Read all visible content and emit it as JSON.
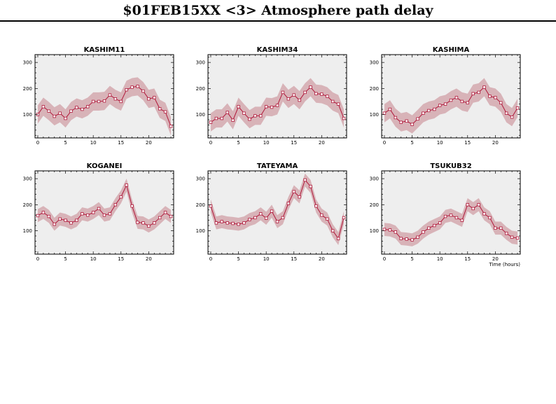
{
  "page_title": "$01FEB15XX <3>  Atmosphere path delay",
  "colors": {
    "band": "#d8b3b8",
    "line": "#b0183a",
    "background": "#eeeeee"
  },
  "chart_data": [
    {
      "type": "line",
      "title": "KASHIM11",
      "xlim": [
        -0.5,
        24.5
      ],
      "ylim": [
        10,
        330
      ],
      "x_ticks": [
        0,
        5,
        10,
        15,
        20
      ],
      "y_ticks": [
        100,
        200,
        300
      ],
      "band_halfwidth": 35,
      "xlabel": "",
      "x": [
        0,
        1,
        2,
        3,
        4,
        5,
        6,
        7,
        8,
        9,
        10,
        11,
        12,
        13,
        14,
        15,
        16,
        17,
        18,
        19,
        20,
        21,
        22,
        23,
        24
      ],
      "y": [
        100,
        130,
        113,
        93,
        105,
        85,
        113,
        127,
        120,
        130,
        150,
        150,
        152,
        175,
        160,
        150,
        195,
        205,
        208,
        190,
        160,
        165,
        122,
        110,
        55
      ]
    },
    {
      "type": "line",
      "title": "KASHIM34",
      "xlim": [
        -0.5,
        24.5
      ],
      "ylim": [
        10,
        330
      ],
      "x_ticks": [
        0,
        5,
        10,
        15,
        20
      ],
      "y_ticks": [
        100,
        200,
        300
      ],
      "band_halfwidth": 35,
      "xlabel": "",
      "x": [
        0,
        1,
        2,
        3,
        4,
        5,
        6,
        7,
        8,
        9,
        10,
        11,
        12,
        13,
        14,
        15,
        16,
        17,
        18,
        19,
        20,
        21,
        22,
        23,
        24
      ],
      "y": [
        70,
        85,
        85,
        108,
        78,
        130,
        105,
        82,
        95,
        95,
        130,
        128,
        135,
        185,
        160,
        175,
        155,
        185,
        205,
        180,
        178,
        170,
        150,
        140,
        85
      ]
    },
    {
      "type": "line",
      "title": "KASHIMA",
      "xlim": [
        -0.5,
        24.5
      ],
      "ylim": [
        10,
        330
      ],
      "x_ticks": [
        0,
        5,
        10,
        15,
        20
      ],
      "y_ticks": [
        100,
        200,
        300
      ],
      "band_halfwidth": 35,
      "xlabel": "",
      "x": [
        0,
        1,
        2,
        3,
        4,
        5,
        6,
        7,
        8,
        9,
        10,
        11,
        12,
        13,
        14,
        15,
        16,
        17,
        18,
        19,
        20,
        21,
        22,
        23,
        24
      ],
      "y": [
        105,
        120,
        88,
        70,
        75,
        62,
        83,
        105,
        115,
        120,
        135,
        140,
        155,
        165,
        150,
        145,
        180,
        185,
        205,
        170,
        165,
        145,
        105,
        90,
        125
      ]
    },
    {
      "type": "line",
      "title": "KOGANEI",
      "xlim": [
        -0.5,
        24.5
      ],
      "ylim": [
        10,
        330
      ],
      "x_ticks": [
        0,
        5,
        10,
        15,
        20
      ],
      "y_ticks": [
        100,
        200,
        300
      ],
      "band_halfwidth": 25,
      "xlabel": "",
      "x": [
        0,
        1,
        2,
        3,
        4,
        5,
        6,
        7,
        8,
        9,
        10,
        11,
        12,
        13,
        14,
        15,
        16,
        17,
        18,
        19,
        20,
        21,
        22,
        23,
        24
      ],
      "y": [
        158,
        170,
        155,
        125,
        145,
        140,
        130,
        140,
        165,
        160,
        170,
        185,
        160,
        165,
        200,
        230,
        275,
        195,
        132,
        130,
        118,
        130,
        150,
        170,
        155
      ]
    },
    {
      "type": "line",
      "title": "TATEYAMA",
      "xlim": [
        -0.5,
        24.5
      ],
      "ylim": [
        10,
        330
      ],
      "x_ticks": [
        0,
        5,
        10,
        15,
        20
      ],
      "y_ticks": [
        100,
        200,
        300
      ],
      "band_halfwidth": 25,
      "xlabel": "",
      "x": [
        0,
        1,
        2,
        3,
        4,
        5,
        6,
        7,
        8,
        9,
        10,
        11,
        12,
        13,
        14,
        15,
        16,
        17,
        18,
        19,
        20,
        21,
        22,
        23,
        24
      ],
      "y": [
        195,
        130,
        135,
        130,
        128,
        125,
        130,
        143,
        150,
        165,
        148,
        175,
        135,
        150,
        205,
        250,
        230,
        295,
        270,
        195,
        160,
        145,
        100,
        70,
        150
      ]
    },
    {
      "type": "line",
      "title": "TSUKUB32",
      "xlim": [
        -0.5,
        24.5
      ],
      "ylim": [
        10,
        330
      ],
      "x_ticks": [
        0,
        5,
        10,
        15,
        20
      ],
      "y_ticks": [
        100,
        200,
        300
      ],
      "band_halfwidth": 25,
      "xlabel": "Time (hours)",
      "x": [
        0,
        1,
        2,
        3,
        4,
        5,
        6,
        7,
        8,
        9,
        10,
        11,
        12,
        13,
        14,
        15,
        16,
        17,
        18,
        19,
        20,
        21,
        22,
        23,
        24
      ],
      "y": [
        105,
        103,
        95,
        70,
        68,
        65,
        75,
        95,
        110,
        120,
        130,
        155,
        160,
        150,
        140,
        200,
        185,
        200,
        165,
        150,
        110,
        110,
        90,
        75,
        72
      ]
    }
  ]
}
